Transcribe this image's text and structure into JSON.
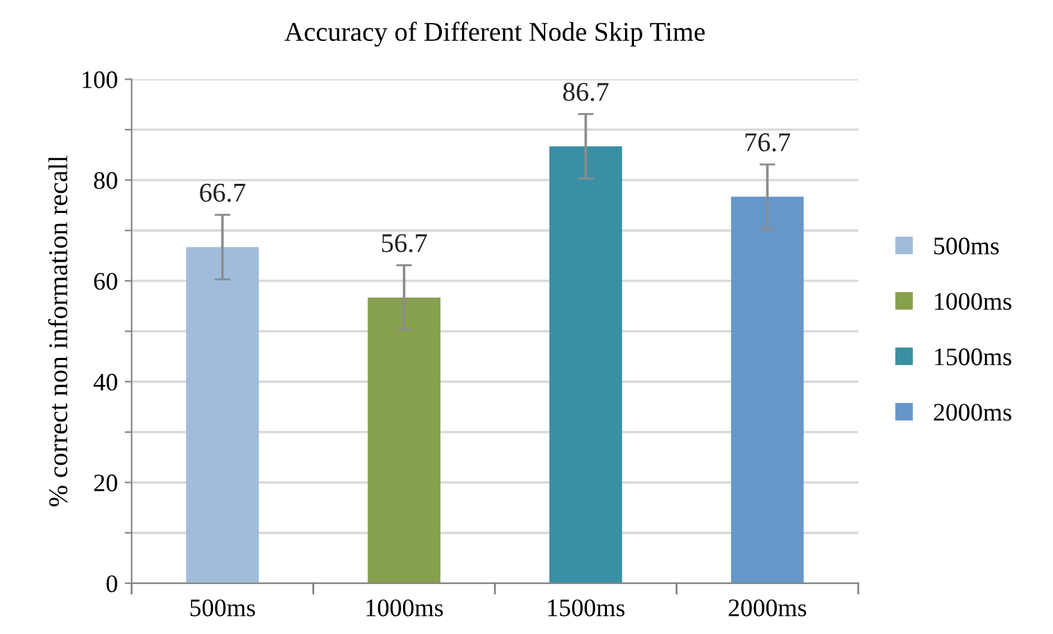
{
  "chart_data": {
    "type": "bar",
    "title": "Accuracy of Different Node Skip Time",
    "ylabel": "% correct non information recall",
    "categories": [
      "500ms",
      "1000ms",
      "1500ms",
      "2000ms"
    ],
    "series": [
      {
        "name": "500ms",
        "color": "#a1bcdb",
        "values": [
          66.7,
          null,
          null,
          null
        ],
        "errors": [
          6.4,
          null,
          null,
          null
        ]
      },
      {
        "name": "1000ms",
        "color": "#87a04d",
        "values": [
          null,
          56.7,
          null,
          null
        ],
        "errors": [
          null,
          6.4,
          null,
          null
        ]
      },
      {
        "name": "1500ms",
        "color": "#3a8fa2",
        "values": [
          null,
          null,
          86.7,
          null
        ],
        "errors": [
          null,
          null,
          6.4,
          null
        ]
      },
      {
        "name": "2000ms",
        "color": "#6597cb",
        "values": [
          null,
          null,
          null,
          76.7
        ],
        "errors": [
          null,
          null,
          null,
          6.4
        ]
      }
    ],
    "ylim": [
      0,
      100
    ],
    "yticks": [
      0,
      {
        "value": 10,
        "label": null
      },
      20,
      {
        "value": 30,
        "label": null
      },
      40,
      {
        "value": 50,
        "label": null
      },
      60,
      {
        "value": 70,
        "label": null
      },
      80,
      {
        "value": 90,
        "label": null
      },
      100
    ],
    "grid": "y",
    "legend": "right",
    "data_labels": true
  }
}
